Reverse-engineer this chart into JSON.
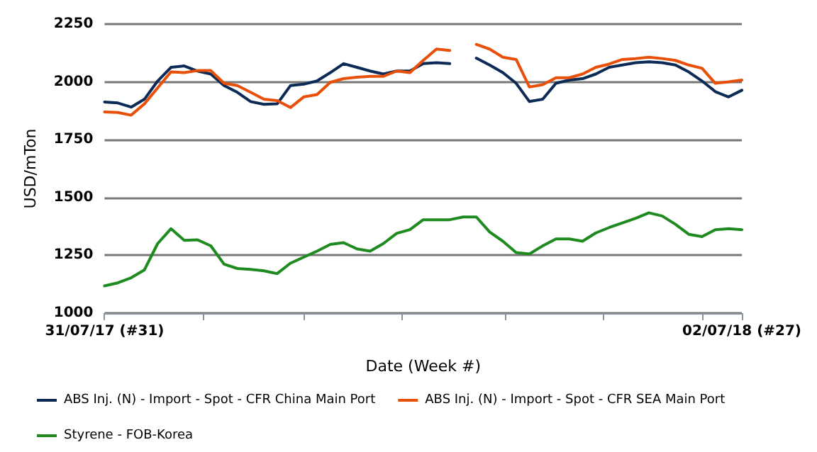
{
  "chart_data": {
    "type": "line",
    "xlabel": "Date (Week #)",
    "ylabel": "USD/mTon",
    "x": [
      "2017-07-31",
      "2017-08-07",
      "2017-08-14",
      "2017-08-21",
      "2017-08-28",
      "2017-09-04",
      "2017-09-11",
      "2017-09-18",
      "2017-09-25",
      "2017-10-02",
      "2017-10-09",
      "2017-10-16",
      "2017-10-23",
      "2017-10-30",
      "2017-11-06",
      "2017-11-13",
      "2017-11-20",
      "2017-11-27",
      "2017-12-04",
      "2017-12-11",
      "2017-12-18",
      "2017-12-25",
      "2018-01-01",
      "2018-01-08",
      "2018-01-15",
      "2018-01-22",
      "2018-01-29",
      "2018-02-05",
      "2018-02-12",
      "2018-02-19",
      "2018-02-26",
      "2018-03-05",
      "2018-03-12",
      "2018-03-19",
      "2018-03-26",
      "2018-04-02",
      "2018-04-09",
      "2018-04-16",
      "2018-04-23",
      "2018-04-30",
      "2018-05-07",
      "2018-05-14",
      "2018-05-21",
      "2018-05-28",
      "2018-06-04",
      "2018-06-11",
      "2018-06-18",
      "2018-06-25",
      "2018-07-02"
    ],
    "series": [
      {
        "name": "ABS Inj. (N) - Import - Spot - CFR China Main Port",
        "color": "#0b2a55",
        "values": [
          1913,
          1909,
          1891,
          1925,
          2004,
          2063,
          2069,
          2047,
          2034,
          1984,
          1955,
          1915,
          1903,
          1905,
          1984,
          1990,
          2004,
          2040,
          2079,
          2063,
          2047,
          2034,
          2047,
          2047,
          2079,
          2083,
          2079,
          null,
          2103,
          2073,
          2040,
          1994,
          1915,
          1925,
          1994,
          2008,
          2014,
          2034,
          2063,
          2073,
          2083,
          2087,
          2083,
          2073,
          2043,
          2004,
          1958,
          1935,
          1964
        ]
      },
      {
        "name": "ABS Inj. (N) - Import - Spot - CFR SEA Main Port",
        "color": "#e8500a",
        "values": [
          1870,
          1868,
          1856,
          1905,
          1974,
          2043,
          2040,
          2049,
          2049,
          1994,
          1984,
          1955,
          1925,
          1919,
          1889,
          1935,
          1945,
          1998,
          2014,
          2020,
          2024,
          2024,
          2047,
          2040,
          2093,
          2142,
          2136,
          null,
          2162,
          2142,
          2107,
          2097,
          1978,
          1988,
          2018,
          2018,
          2034,
          2063,
          2077,
          2097,
          2101,
          2107,
          2101,
          2093,
          2073,
          2059,
          1994,
          2000,
          2008
        ]
      },
      {
        "name": "Styrene - FOB-Korea",
        "color": "#1f8a1f",
        "values": [
          1118,
          1131,
          1153,
          1187,
          1301,
          1365,
          1315,
          1317,
          1291,
          1212,
          1193,
          1189,
          1183,
          1171,
          1216,
          1242,
          1268,
          1297,
          1305,
          1278,
          1268,
          1301,
          1345,
          1361,
          1404,
          1404,
          1404,
          1416,
          1416,
          1351,
          1311,
          1262,
          1256,
          1291,
          1321,
          1321,
          1311,
          1347,
          1370,
          1390,
          1410,
          1434,
          1420,
          1384,
          1341,
          1331,
          1361,
          1365,
          1361
        ]
      }
    ],
    "xlim": [
      "2017-07-31",
      "2018-07-02"
    ],
    "xticks": [
      {
        "value": "2017-07-31",
        "label": "31/07/17 (#31)"
      },
      {
        "value": "2017-09-21",
        "label": null
      },
      {
        "value": "2017-11-13",
        "label": null
      },
      {
        "value": "2018-01-04",
        "label": null
      },
      {
        "value": "2018-02-27",
        "label": null
      },
      {
        "value": "2018-04-20",
        "label": null
      },
      {
        "value": "2018-06-11",
        "label": null
      },
      {
        "value": "2018-07-02",
        "label": "02/07/18 (#27)"
      }
    ],
    "ylim": [
      1000,
      2250
    ],
    "yticks": [
      1000,
      1250,
      1500,
      1750,
      2000,
      2250
    ],
    "grid": "y",
    "legend": "bottom",
    "marker": "none",
    "line_style": "solid"
  }
}
